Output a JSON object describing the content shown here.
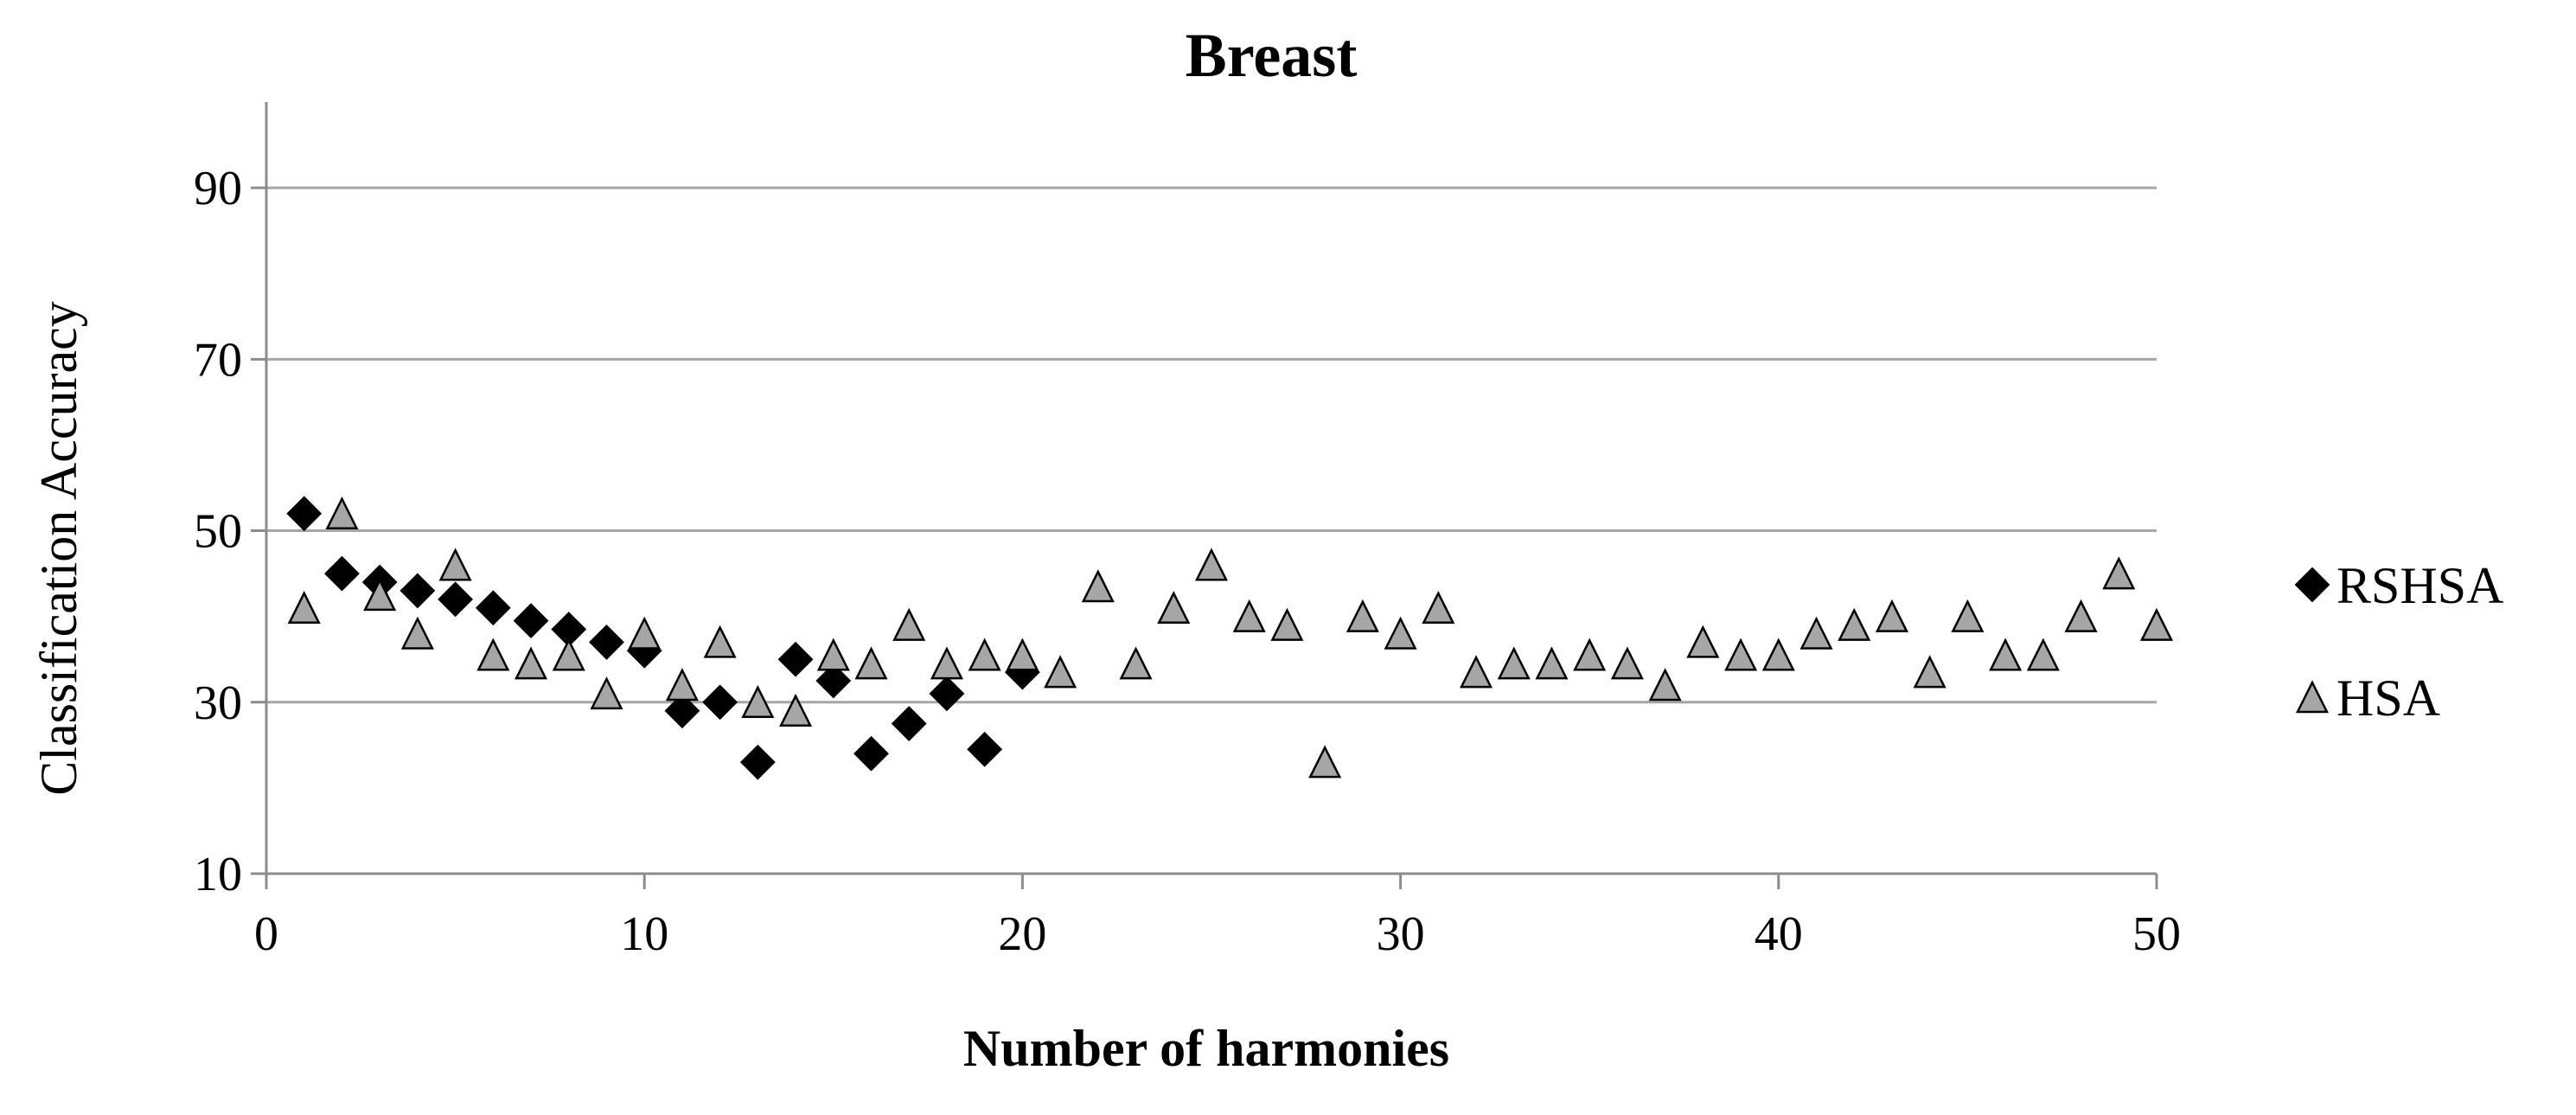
{
  "chart_data": {
    "type": "scatter",
    "title": "Breast",
    "xlabel": "Number of harmonies",
    "ylabel": "Classification Accuracy",
    "xlim": [
      0,
      50
    ],
    "ylim": [
      10,
      100
    ],
    "xticks": [
      0,
      10,
      20,
      30,
      40,
      50
    ],
    "yticks": [
      10,
      30,
      50,
      70,
      90
    ],
    "grid": "horizontal",
    "legend_position": "right",
    "series": [
      {
        "name": "RSHSA",
        "marker": "diamond",
        "color": "#000000",
        "x": [
          1,
          2,
          3,
          4,
          5,
          6,
          7,
          8,
          9,
          10,
          11,
          12,
          13,
          14,
          15,
          16,
          17,
          18,
          19,
          20
        ],
        "y": [
          52,
          45,
          44,
          43,
          42,
          41,
          39.5,
          38.5,
          37,
          36,
          29,
          30,
          23,
          35,
          32.5,
          24,
          27.5,
          31,
          24.5,
          33.5
        ]
      },
      {
        "name": "HSA",
        "marker": "triangle",
        "color": "#a6a6a6",
        "x": [
          1,
          2,
          3,
          4,
          5,
          6,
          7,
          8,
          9,
          10,
          11,
          12,
          13,
          14,
          15,
          16,
          17,
          18,
          19,
          20,
          21,
          22,
          23,
          24,
          25,
          26,
          27,
          28,
          29,
          30,
          31,
          32,
          33,
          34,
          35,
          36,
          37,
          38,
          39,
          40,
          41,
          42,
          43,
          44,
          45,
          46,
          47,
          48,
          49,
          50
        ],
        "y": [
          41,
          52,
          42.5,
          38,
          46,
          35.5,
          34.5,
          35.5,
          31,
          38,
          32,
          37,
          30,
          29,
          35.5,
          34.5,
          39,
          34.5,
          35.5,
          35.5,
          33.5,
          43.5,
          34.5,
          41,
          46,
          40,
          39,
          23,
          40,
          38,
          41,
          33.5,
          34.5,
          34.5,
          35.5,
          34.5,
          32,
          37,
          35.5,
          35.5,
          38,
          39,
          40,
          33.5,
          40,
          35.5,
          35.5,
          40,
          45,
          39
        ]
      }
    ]
  }
}
